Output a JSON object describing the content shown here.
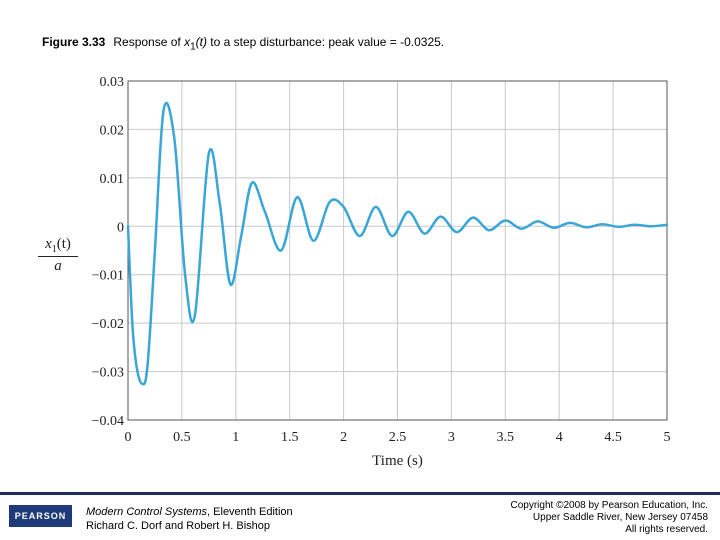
{
  "caption": {
    "figure_label": "Figure 3.33",
    "text_prefix": "Response of ",
    "var": "x",
    "var_sub": "1",
    "var_arg": "(t)",
    "text_suffix": " to a step disturbance: peak value = -0.0325."
  },
  "chart_data": {
    "type": "line",
    "xlabel": "Time (s)",
    "ylabel": {
      "num_var": "x",
      "num_sub": "1",
      "num_arg": "(t)",
      "den": "a"
    },
    "xlim": [
      0,
      5
    ],
    "ylim": [
      -0.04,
      0.03
    ],
    "xticks": [
      "0",
      "0.5",
      "1",
      "1.5",
      "2",
      "2.5",
      "3",
      "3.5",
      "4",
      "4.5",
      "5"
    ],
    "yticks": [
      "0.03",
      "0.02",
      "0.01",
      "0",
      "−0.01",
      "−0.02",
      "−0.03",
      "−0.04"
    ],
    "ytick_values": [
      0.03,
      0.02,
      0.01,
      0,
      -0.01,
      -0.02,
      -0.03,
      -0.04
    ],
    "grid": true,
    "line_color": "#3aa6d6",
    "series": [
      {
        "x": [
          0,
          0.04,
          0.08,
          0.13,
          0.18,
          0.25,
          0.33,
          0.43,
          0.53,
          0.62,
          0.75,
          0.85,
          0.95,
          1.05,
          1.15,
          1.27,
          1.42,
          1.57,
          1.72,
          1.87,
          2.0,
          2.15,
          2.3,
          2.45,
          2.6,
          2.75,
          2.9,
          3.05,
          3.2,
          3.35,
          3.5,
          3.65,
          3.8,
          3.95,
          4.1,
          4.25,
          4.4,
          4.55,
          4.7,
          4.85,
          5.0
        ],
        "y": [
          0,
          -0.02,
          -0.029,
          -0.0325,
          -0.029,
          -0.005,
          0.024,
          0.018,
          -0.01,
          -0.0185,
          0.015,
          0.005,
          -0.012,
          -0.002,
          0.009,
          0.003,
          -0.005,
          0.006,
          -0.003,
          0.005,
          0.004,
          -0.002,
          0.004,
          -0.002,
          0.003,
          -0.0015,
          0.002,
          -0.0012,
          0.0018,
          -0.0008,
          0.0012,
          -0.0005,
          0.001,
          -0.0003,
          0.0007,
          -0.0002,
          0.0004,
          -0.0001,
          0.0003,
          0.0,
          0.0003
        ]
      }
    ]
  },
  "footer": {
    "logo": "PEARSON",
    "book_title": "Modern Control Systems",
    "book_edition": ", Eleventh Edition",
    "authors": "Richard C. Dorf and Robert H. Bishop",
    "copyright_1": "Copyright ©2008 by Pearson Education, Inc.",
    "copyright_2": "Upper Saddle River, New Jersey 07458",
    "copyright_3": "All rights reserved."
  }
}
